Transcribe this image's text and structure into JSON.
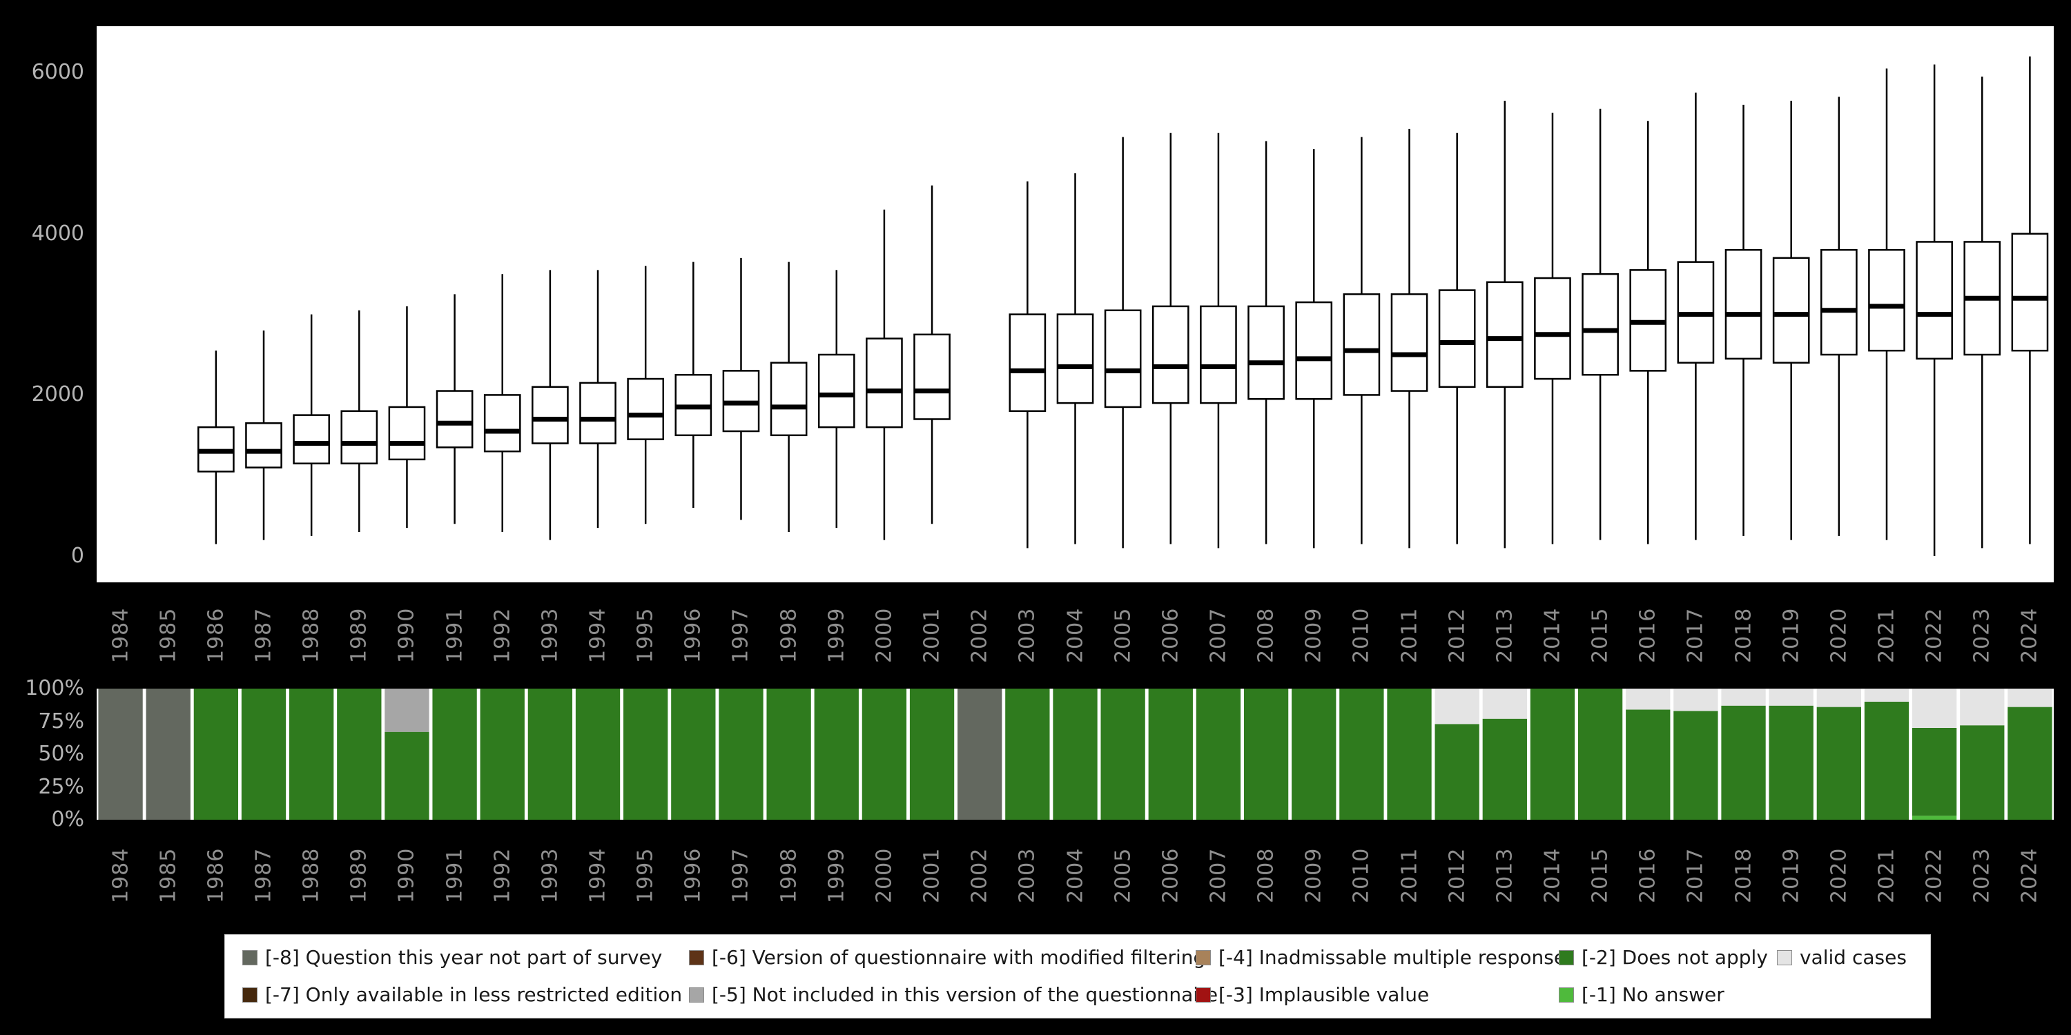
{
  "window": {
    "background": "#000000"
  },
  "colors": {
    "minus8": "#63685f",
    "minus7": "#45280d",
    "minus6": "#5e3317",
    "minus5": "#a6a6a6",
    "minus4": "#a8825a",
    "minus3": "#a11212",
    "minus2": "#2f7b1e",
    "minus1": "#4fba3c",
    "valid": "#e4e4e4",
    "box_fill": "#ffffff",
    "box_stroke": "#000000"
  },
  "chart_data": [
    {
      "type": "boxplot",
      "title": "",
      "xlabel": "",
      "ylabel": "",
      "x": [
        "1984",
        "1985",
        "1986",
        "1987",
        "1988",
        "1989",
        "1990",
        "1991",
        "1992",
        "1993",
        "1994",
        "1995",
        "1996",
        "1997",
        "1998",
        "1999",
        "2000",
        "2001",
        "2002",
        "2003",
        "2004",
        "2005",
        "2006",
        "2007",
        "2008",
        "2009",
        "2010",
        "2011",
        "2012",
        "2013",
        "2014",
        "2015",
        "2016",
        "2017",
        "2018",
        "2019",
        "2020",
        "2021",
        "2022",
        "2023",
        "2024"
      ],
      "ylim": [
        0,
        6400
      ],
      "yticks": [
        0,
        2000,
        4000,
        6000
      ],
      "ytick_labels": [
        "0",
        "2000",
        "4000",
        "6000"
      ],
      "grid": false,
      "box_format": [
        "whisker_low",
        "q1",
        "median",
        "q3",
        "whisker_high"
      ],
      "boxes": [
        null,
        null,
        [
          150,
          1050,
          1300,
          1600,
          2550
        ],
        [
          200,
          1100,
          1300,
          1650,
          2800
        ],
        [
          250,
          1150,
          1400,
          1750,
          3000
        ],
        [
          300,
          1150,
          1400,
          1800,
          3050
        ],
        [
          350,
          1200,
          1400,
          1850,
          3100
        ],
        [
          400,
          1350,
          1650,
          2050,
          3250
        ],
        [
          300,
          1300,
          1550,
          2000,
          3500
        ],
        [
          200,
          1400,
          1700,
          2100,
          3550
        ],
        [
          350,
          1400,
          1700,
          2150,
          3550
        ],
        [
          400,
          1450,
          1750,
          2200,
          3600
        ],
        [
          600,
          1500,
          1850,
          2250,
          3650
        ],
        [
          450,
          1550,
          1900,
          2300,
          3700
        ],
        [
          300,
          1500,
          1850,
          2400,
          3650
        ],
        [
          350,
          1600,
          2000,
          2500,
          3550
        ],
        [
          200,
          1600,
          2050,
          2700,
          4300
        ],
        [
          400,
          1700,
          2050,
          2750,
          4600
        ],
        null,
        [
          100,
          1800,
          2300,
          3000,
          4650
        ],
        [
          150,
          1900,
          2350,
          3000,
          4750
        ],
        [
          100,
          1850,
          2300,
          3050,
          5200
        ],
        [
          150,
          1900,
          2350,
          3100,
          5250
        ],
        [
          100,
          1900,
          2350,
          3100,
          5250
        ],
        [
          150,
          1950,
          2400,
          3100,
          5150
        ],
        [
          100,
          1950,
          2450,
          3150,
          5050
        ],
        [
          150,
          2000,
          2550,
          3250,
          5200
        ],
        [
          100,
          2050,
          2500,
          3250,
          5300
        ],
        [
          150,
          2100,
          2650,
          3300,
          5250
        ],
        [
          100,
          2100,
          2700,
          3400,
          5650
        ],
        [
          150,
          2200,
          2750,
          3450,
          5500
        ],
        [
          200,
          2250,
          2800,
          3500,
          5550
        ],
        [
          150,
          2300,
          2900,
          3550,
          5400
        ],
        [
          200,
          2400,
          3000,
          3650,
          5750
        ],
        [
          250,
          2450,
          3000,
          3800,
          5600
        ],
        [
          200,
          2400,
          3000,
          3700,
          5650
        ],
        [
          250,
          2500,
          3050,
          3800,
          5700
        ],
        [
          200,
          2550,
          3100,
          3800,
          6050
        ],
        [
          0,
          2450,
          3000,
          3900,
          6100
        ],
        [
          100,
          2500,
          3200,
          3900,
          5950
        ],
        [
          150,
          2550,
          3200,
          4000,
          6200
        ]
      ]
    },
    {
      "type": "stacked_bar_percent",
      "title": "",
      "x": [
        "1984",
        "1985",
        "1986",
        "1987",
        "1988",
        "1989",
        "1990",
        "1991",
        "1992",
        "1993",
        "1994",
        "1995",
        "1996",
        "1997",
        "1998",
        "1999",
        "2000",
        "2001",
        "2002",
        "2003",
        "2004",
        "2005",
        "2006",
        "2007",
        "2008",
        "2009",
        "2010",
        "2011",
        "2012",
        "2013",
        "2014",
        "2015",
        "2016",
        "2017",
        "2018",
        "2019",
        "2020",
        "2021",
        "2022",
        "2023",
        "2024"
      ],
      "yticks": [
        0,
        25,
        50,
        75,
        100
      ],
      "ytick_labels": [
        "0%",
        "25%",
        "50%",
        "75%",
        "100%"
      ],
      "stack_order": [
        "minus1",
        "minus2",
        "minus3",
        "minus4",
        "minus5",
        "minus6",
        "minus7",
        "minus8",
        "valid"
      ],
      "bars": [
        {
          "minus8": 100
        },
        {
          "minus8": 100
        },
        {
          "minus2": 100
        },
        {
          "minus2": 100
        },
        {
          "minus2": 100
        },
        {
          "minus2": 100
        },
        {
          "minus2": 67,
          "minus5": 33
        },
        {
          "minus2": 100
        },
        {
          "minus2": 100
        },
        {
          "minus2": 100
        },
        {
          "minus2": 100
        },
        {
          "minus2": 100
        },
        {
          "minus2": 100
        },
        {
          "minus2": 100
        },
        {
          "minus2": 100
        },
        {
          "minus2": 100
        },
        {
          "minus2": 100
        },
        {
          "minus2": 100
        },
        {
          "minus8": 100
        },
        {
          "minus2": 100
        },
        {
          "minus2": 100
        },
        {
          "minus2": 100
        },
        {
          "minus2": 100
        },
        {
          "minus2": 100
        },
        {
          "minus2": 100
        },
        {
          "minus2": 100
        },
        {
          "minus2": 100
        },
        {
          "minus2": 100
        },
        {
          "minus2": 73,
          "valid": 27
        },
        {
          "minus2": 77,
          "valid": 23
        },
        {
          "minus2": 100
        },
        {
          "minus2": 100
        },
        {
          "minus2": 84,
          "valid": 16
        },
        {
          "minus2": 83,
          "valid": 17
        },
        {
          "minus2": 87,
          "valid": 13
        },
        {
          "minus2": 87,
          "valid": 13
        },
        {
          "minus2": 86,
          "valid": 14
        },
        {
          "minus2": 90,
          "valid": 10
        },
        {
          "minus1": 3,
          "minus2": 67,
          "valid": 30
        },
        {
          "minus2": 72,
          "valid": 28
        },
        {
          "minus2": 86,
          "valid": 14
        }
      ]
    }
  ],
  "legend": {
    "items": [
      {
        "key": "minus8",
        "label": "[-8] Question this year not part of survey",
        "row": 1,
        "col": 1
      },
      {
        "key": "minus6",
        "label": "[-6] Version of questionnaire with modified filtering",
        "row": 1,
        "col": 2
      },
      {
        "key": "minus4",
        "label": "[-4] Inadmissable multiple response",
        "row": 1,
        "col": 3
      },
      {
        "key": "minus2",
        "label": "[-2] Does not apply",
        "row": 1,
        "col": 4
      },
      {
        "key": "valid",
        "label": "valid cases",
        "row": 1,
        "col": 5
      },
      {
        "key": "minus7",
        "label": "[-7] Only available in less restricted edition",
        "row": 2,
        "col": 1
      },
      {
        "key": "minus5",
        "label": "[-5] Not included in this version of the questionnaire",
        "row": 2,
        "col": 2
      },
      {
        "key": "minus3",
        "label": "[-3] Implausible value",
        "row": 2,
        "col": 3
      },
      {
        "key": "minus1",
        "label": "[-1] No answer",
        "row": 2,
        "col": 4
      }
    ]
  }
}
